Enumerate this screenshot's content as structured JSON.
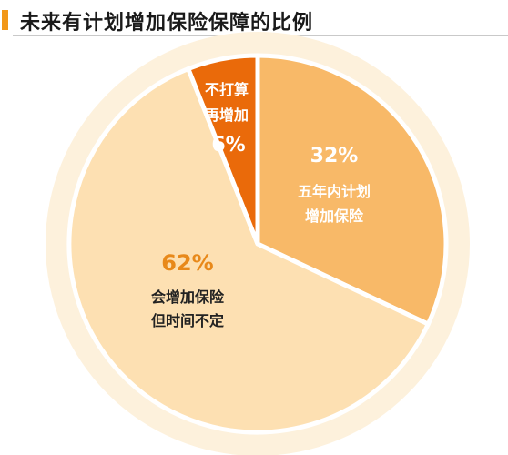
{
  "title": "未来有计划增加保险保障的比例",
  "colors": {
    "title_accent": "#f29718",
    "halo": "#fdf1dc",
    "slice_large": "#fde0b2",
    "slice_medium": "#f8b968",
    "slice_small": "#ea6a0a",
    "label_dark_pct": "#e8891a",
    "label_text_dark": "#222222",
    "label_text_light": "#ffffff"
  },
  "chart_data": {
    "type": "pie",
    "title": "未来有计划增加保险保障的比例",
    "slices": [
      {
        "label_line1": "五年内计划",
        "label_line2": "增加保险",
        "value": 32,
        "pct_label": "32%"
      },
      {
        "label_line1": "会增加保险",
        "label_line2": "但时间不定",
        "value": 62,
        "pct_label": "62%"
      },
      {
        "label_line1": "不打算",
        "label_line2": "再增加",
        "value": 6,
        "pct_label": "6%"
      }
    ]
  }
}
